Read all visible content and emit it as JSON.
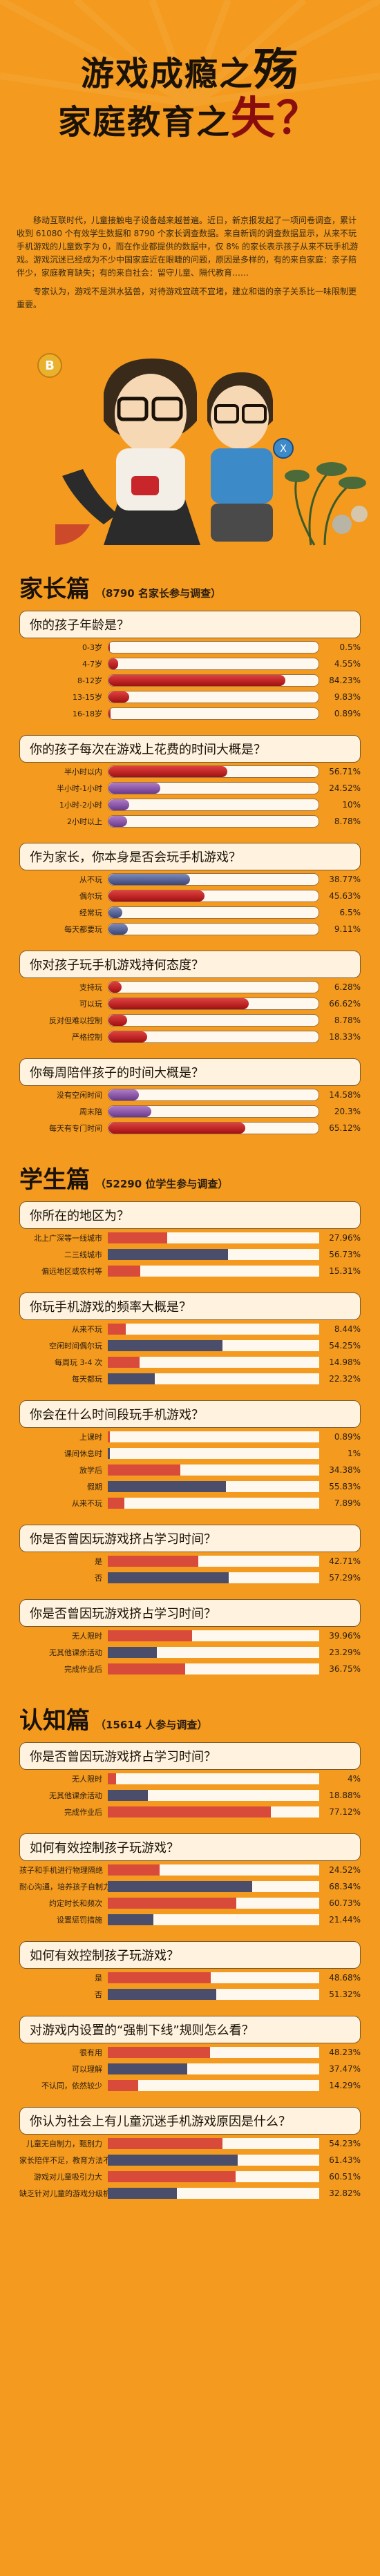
{
  "title": {
    "line1_a": "游戏成瘾之",
    "line1_b": "殇",
    "line2_a": "家庭教育之",
    "line2_b": "失？"
  },
  "intro": {
    "p1": "移动互联时代，儿童接触电子设备越来越普遍。近日，新京报发起了一项问卷调查，累计收到 61080 个有效学生数据和 8790 个家长调查数据。来自新调的调查数据显示，从来不玩手机游戏的儿童数字为 0，而在作业都提供的数据中，仅 8% 的家长表示孩子从来不玩手机游戏。游戏沉迷已经成为不少中国家庭近在眼睫的问题，原因是多样的，有的来自家庭：亲子陪伴少，家庭教育缺失；有的来自社会：留守儿童、隔代教育……",
    "p2": "专家认为，游戏不是洪水猛兽，对待游戏宜疏不宜堵，建立和谐的亲子关系比一味限制更重要。"
  },
  "colors": {
    "background": "#F39A1F",
    "red": "#C8262B",
    "purple": "#8A4FA8",
    "blue": "#55608F",
    "grey": "#4A4E6A"
  },
  "sections": {
    "parents": {
      "name": "家长篇",
      "sub": "（8790 名家长参与调查）"
    },
    "students": {
      "name": "学生篇",
      "sub": "（52290 位学生参与调查）"
    },
    "cognition": {
      "name": "认知篇",
      "sub": "（15614 人参与调查）"
    }
  },
  "chart_data": [
    {
      "type": "bar",
      "section": "parents",
      "title": "你的孩子年龄是？",
      "categories": [
        "0-3岁",
        "4-7岁",
        "8-12岁",
        "13-15岁",
        "16-18岁"
      ],
      "values": [
        0.5,
        4.55,
        84.23,
        9.83,
        0.89
      ],
      "unit": "%"
    },
    {
      "type": "bar",
      "section": "parents",
      "title": "你的孩子每次在游戏上花费的时间大概是？",
      "categories": [
        "半小时以内",
        "半小时-1小时",
        "1小时-2小时",
        "2小时以上"
      ],
      "values": [
        56.71,
        24.52,
        10,
        8.78
      ],
      "unit": "%"
    },
    {
      "type": "bar",
      "section": "parents",
      "title": "作为家长，你本身是否会玩手机游戏？",
      "categories": [
        "从不玩",
        "偶尔玩",
        "经常玩",
        "每天都要玩"
      ],
      "values": [
        38.77,
        45.63,
        6.5,
        9.11
      ],
      "unit": "%"
    },
    {
      "type": "bar",
      "section": "parents",
      "title": "你对孩子玩手机游戏持何态度？",
      "categories": [
        "支持玩",
        "可以玩",
        "反对但难以控制",
        "严格控制"
      ],
      "values": [
        6.28,
        66.62,
        8.78,
        18.33
      ],
      "unit": "%"
    },
    {
      "type": "bar",
      "section": "parents",
      "title": "你每周陪伴孩子的时间大概是？",
      "categories": [
        "没有空闲时间",
        "周末陪",
        "每天有专门时间"
      ],
      "values": [
        14.58,
        20.3,
        65.12
      ],
      "unit": "%"
    },
    {
      "type": "bar",
      "section": "students",
      "title": "你所在的地区为？",
      "categories": [
        "北上广深等一线城市",
        "二三线城市",
        "偏远地区或农村等"
      ],
      "values": [
        27.96,
        56.73,
        15.31
      ],
      "unit": "%"
    },
    {
      "type": "bar",
      "section": "students",
      "title": "你玩手机游戏的频率大概是？",
      "categories": [
        "从来不玩",
        "空闲时间偶尔玩",
        "每周玩 3-4 次",
        "每天都玩"
      ],
      "values": [
        8.44,
        54.25,
        14.98,
        22.32
      ],
      "unit": "%"
    },
    {
      "type": "bar",
      "section": "students",
      "title": "你会在什么时间段玩手机游戏？",
      "categories": [
        "上课时",
        "课间休息时",
        "放学后",
        "假期",
        "从来不玩"
      ],
      "values": [
        0.89,
        1,
        34.38,
        55.83,
        7.89
      ],
      "unit": "%"
    },
    {
      "type": "bar",
      "section": "students",
      "title": "你是否曾因玩游戏挤占学习时间？",
      "categories": [
        "是",
        "否"
      ],
      "values": [
        42.71,
        57.29
      ],
      "unit": "%"
    },
    {
      "type": "bar",
      "section": "students",
      "title": "你是否曾因玩游戏挤占学习时间？",
      "categories": [
        "无人限时",
        "无其他课余活动",
        "完成作业后"
      ],
      "values": [
        39.96,
        23.29,
        36.75
      ],
      "unit": "%"
    },
    {
      "type": "bar",
      "section": "cognition",
      "title": "你是否曾因玩游戏挤占学习时间？",
      "categories": [
        "无人限时",
        "无其他课余活动",
        "完成作业后"
      ],
      "values": [
        4,
        18.88,
        77.12
      ],
      "unit": "%"
    },
    {
      "type": "bar",
      "section": "cognition",
      "title": "如何有效控制孩子玩游戏？",
      "categories": [
        "孩子和手机进行物理隔绝",
        "耐心沟通，培养孩子自制力",
        "约定时长和频次",
        "设置惩罚措施"
      ],
      "values": [
        24.52,
        68.34,
        60.73,
        21.44
      ],
      "unit": "%"
    },
    {
      "type": "bar",
      "section": "cognition",
      "title": "如何有效控制孩子玩游戏？",
      "categories": [
        "是",
        "否"
      ],
      "values": [
        48.68,
        51.32
      ],
      "unit": "%"
    },
    {
      "type": "bar",
      "section": "cognition",
      "title": "对游戏内设置的“强制下线”规则怎么看？",
      "categories": [
        "很有用",
        "可以理解",
        "不认同，依然较少"
      ],
      "values": [
        48.23,
        37.47,
        14.29
      ],
      "unit": "%"
    },
    {
      "type": "bar",
      "section": "cognition",
      "title": "你认为社会上有儿童沉迷手机游戏原因是什么？",
      "categories": [
        "儿童无自制力，甄别力",
        "家长陪伴不足，教育方法不当",
        "游戏对儿童吸引力大",
        "缺乏针对儿童的游戏分级机制"
      ],
      "values": [
        54.23,
        61.43,
        60.51,
        32.82
      ],
      "unit": "%"
    }
  ]
}
